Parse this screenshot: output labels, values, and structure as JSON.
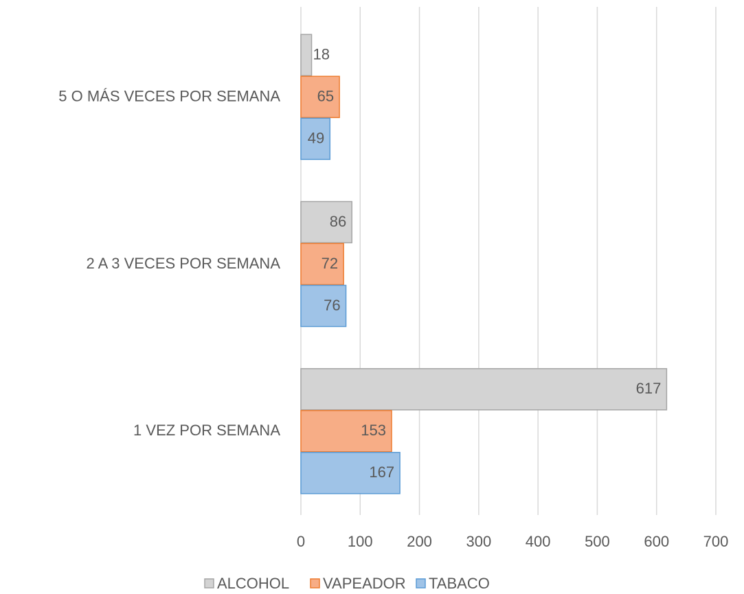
{
  "chart_data": {
    "type": "bar",
    "orientation": "horizontal",
    "categories": [
      "1 VEZ POR SEMANA",
      "2 A 3 VECES POR SEMANA",
      "5 O MÁS VECES POR SEMANA"
    ],
    "series": [
      {
        "name": "ALCOHOL",
        "color": "#d3d3d3",
        "edge_color": "#a5a5a5",
        "values": [
          617,
          86,
          18
        ]
      },
      {
        "name": "VAPEADOR",
        "color": "#f7ad86",
        "edge_color": "#ed7d31",
        "values": [
          153,
          72,
          65
        ]
      },
      {
        "name": "TABACO",
        "color": "#9fc3e7",
        "edge_color": "#5b9bd5",
        "values": [
          167,
          76,
          49
        ]
      }
    ],
    "xlim": [
      0,
      700
    ],
    "xticks": [
      0,
      100,
      200,
      300,
      400,
      500,
      600,
      700
    ],
    "grid": true,
    "legend": "bottom"
  }
}
